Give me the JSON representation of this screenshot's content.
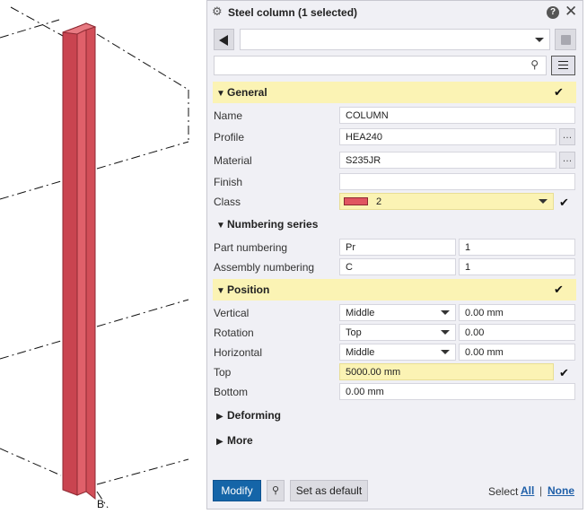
{
  "viewport": {
    "grid_label": "B"
  },
  "panel": {
    "title": "Steel column (1 selected)",
    "icons": {
      "settings": "gear-icon",
      "help": "help-icon",
      "close": "close-icon"
    },
    "toolbar": {
      "preset_value": "",
      "search_value": ""
    },
    "sections": {
      "general": "General",
      "numbering": "Numbering series",
      "position": "Position",
      "deforming": "Deforming",
      "more": "More"
    },
    "general": {
      "name_label": "Name",
      "name_value": "COLUMN",
      "profile_label": "Profile",
      "profile_value": "HEA240",
      "material_label": "Material",
      "material_value": "S235JR",
      "finish_label": "Finish",
      "finish_value": "",
      "class_label": "Class",
      "class_value": "2",
      "class_color": "#e05560"
    },
    "numbering": {
      "part_label": "Part numbering",
      "part_prefix": "Pr",
      "part_start": "1",
      "assembly_label": "Assembly numbering",
      "assembly_prefix": "C",
      "assembly_start": "1"
    },
    "position": {
      "vertical_label": "Vertical",
      "vertical_value": "Middle",
      "vertical_offset": "0.00 mm",
      "rotation_label": "Rotation",
      "rotation_value": "Top",
      "rotation_offset": "0.00",
      "horizontal_label": "Horizontal",
      "horizontal_value": "Middle",
      "horizontal_offset": "0.00 mm",
      "top_label": "Top",
      "top_value": "5000.00 mm",
      "bottom_label": "Bottom",
      "bottom_value": "0.00 mm"
    },
    "footer": {
      "modify": "Modify",
      "set_default": "Set as default",
      "select_label": "Select",
      "select_all": "All",
      "separator": "|",
      "select_none": "None"
    },
    "colors": {
      "highlight": "#fbf3b4",
      "accent": "#1565a8",
      "column": "#d64550"
    }
  }
}
